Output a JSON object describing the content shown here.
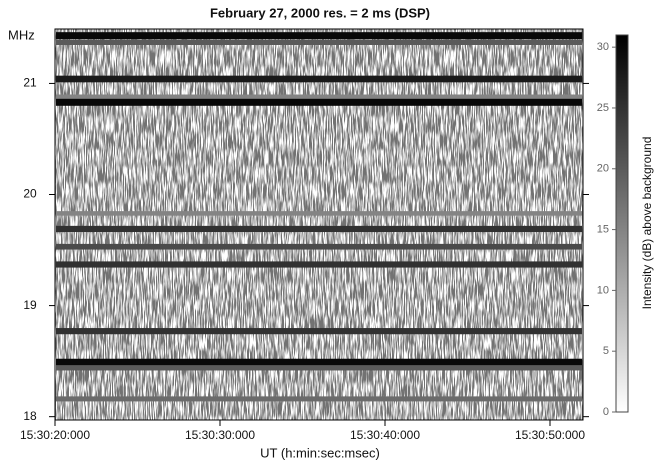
{
  "chart_data": {
    "type": "spectrogram",
    "title": "February 27, 2000   res. = 2 ms  (DSP)",
    "xlabel": "UT (h:min:sec:msec)",
    "ylabel": "MHz",
    "colorbar_label": "Intensity (dB) above background",
    "xlim": [
      20,
      52
    ],
    "xticks": [
      {
        "value": 20,
        "label": "15:30:20:000"
      },
      {
        "value": 30,
        "label": "15:30:30:000"
      },
      {
        "value": 40,
        "label": "15:30:40:000"
      },
      {
        "value": 50,
        "label": "15:30:50:000"
      }
    ],
    "ylim": [
      17.97,
      21.49
    ],
    "yticks": [
      18,
      19,
      20,
      21
    ],
    "clim": [
      0,
      31
    ],
    "cticks": [
      0,
      5,
      10,
      15,
      20,
      25,
      30
    ],
    "bands": [
      {
        "freq": 21.43,
        "intensity": 30
      },
      {
        "freq": 21.37,
        "intensity": 20
      },
      {
        "freq": 21.04,
        "intensity": 28
      },
      {
        "freq": 20.88,
        "intensity": 15
      },
      {
        "freq": 20.83,
        "intensity": 30
      },
      {
        "freq": 19.83,
        "intensity": 15
      },
      {
        "freq": 19.69,
        "intensity": 25
      },
      {
        "freq": 19.53,
        "intensity": 22
      },
      {
        "freq": 19.37,
        "intensity": 25
      },
      {
        "freq": 18.77,
        "intensity": 25
      },
      {
        "freq": 18.49,
        "intensity": 30
      },
      {
        "freq": 18.44,
        "intensity": 20
      },
      {
        "freq": 18.16,
        "intensity": 18
      }
    ]
  }
}
